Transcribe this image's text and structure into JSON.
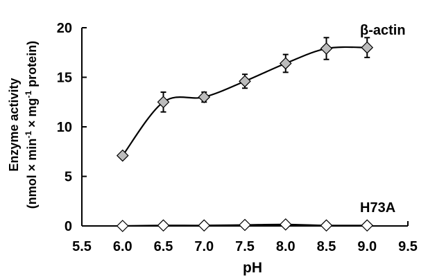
{
  "chart_data": {
    "type": "line",
    "xlabel": "pH",
    "ylabel_line1": "Enzyme activity",
    "ylabel_line2": {
      "t1": "(nmol × min",
      "sup1": "-1",
      "t2": " × mg",
      "sup2": "-1",
      "t3": " protein)"
    },
    "xlim": [
      5.5,
      9.5
    ],
    "ylim": [
      0,
      20
    ],
    "xticks": [
      "5.5",
      "6.0",
      "6.5",
      "7.0",
      "7.5",
      "8.0",
      "8.5",
      "9.0",
      "9.5"
    ],
    "yticks": [
      "0",
      "5",
      "10",
      "15",
      "20"
    ],
    "grid": false,
    "series": [
      {
        "name": "β-actin",
        "marker": "diamond",
        "marker_fill": "#bcbcbc",
        "x": [
          6.0,
          6.5,
          7.0,
          7.5,
          8.0,
          8.5,
          9.0
        ],
        "y": [
          7.1,
          12.5,
          13.0,
          14.6,
          16.4,
          17.9,
          18.0
        ],
        "error": [
          0,
          1.0,
          0.5,
          0.7,
          0.9,
          1.1,
          1.0
        ]
      },
      {
        "name": "H73A",
        "marker": "diamond",
        "marker_fill": "#ffffff",
        "x": [
          6.0,
          6.5,
          7.0,
          7.5,
          8.0,
          8.5,
          9.0
        ],
        "y": [
          0.0,
          0.05,
          0.05,
          0.1,
          0.15,
          0.05,
          0.05
        ],
        "error": [
          0,
          0,
          0,
          0,
          0,
          0,
          0
        ]
      }
    ]
  }
}
